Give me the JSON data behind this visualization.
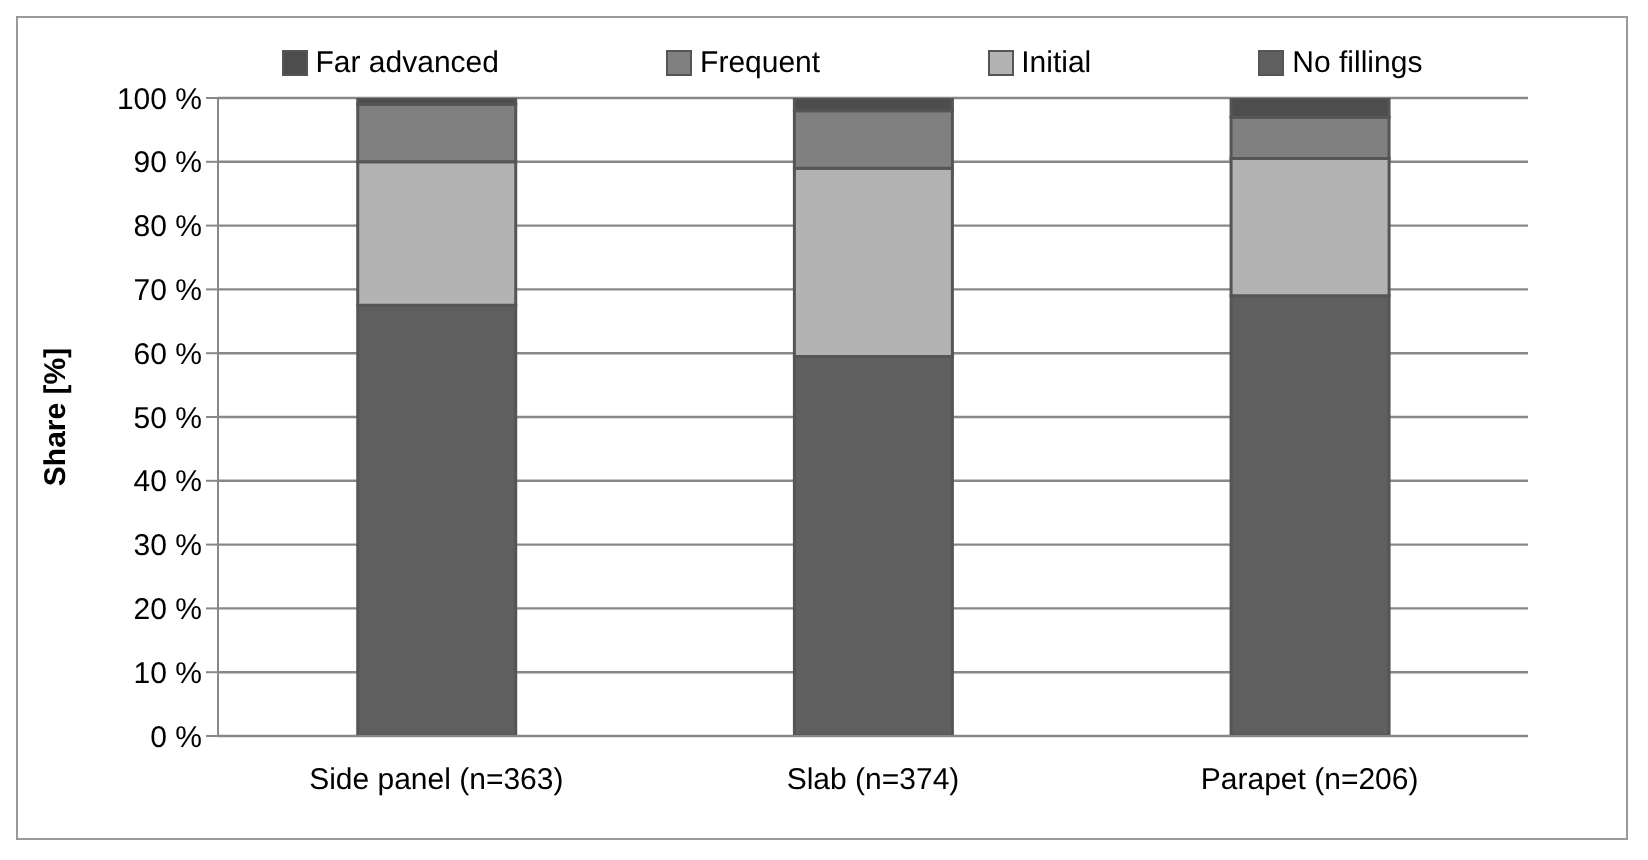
{
  "chart_data": {
    "type": "bar",
    "stacked": true,
    "ylabel": "Share [%]",
    "categories": [
      "Side panel (n=363)",
      "Slab (n=374)",
      "Parapet (n=206)"
    ],
    "series": [
      {
        "name": "No fillings",
        "color": "#5f5f5f",
        "values": [
          67.5,
          59.5,
          69
        ]
      },
      {
        "name": "Initial",
        "color": "#b3b3b3",
        "values": [
          22.5,
          29.5,
          21.5
        ]
      },
      {
        "name": "Frequent",
        "color": "#808080",
        "values": [
          9,
          9,
          6.5
        ]
      },
      {
        "name": "Far advanced",
        "color": "#4d4d4d",
        "values": [
          1,
          2,
          3
        ]
      }
    ],
    "ylim": [
      0,
      100
    ],
    "yticks": [
      {
        "value": 0,
        "label": "0 %"
      },
      {
        "value": 10,
        "label": "10 %"
      },
      {
        "value": 20,
        "label": "20 %"
      },
      {
        "value": 30,
        "label": "30 %"
      },
      {
        "value": 40,
        "label": "40 %"
      },
      {
        "value": 50,
        "label": "50 %"
      },
      {
        "value": 60,
        "label": "60 %"
      },
      {
        "value": 70,
        "label": "70 %"
      },
      {
        "value": 80,
        "label": "80 %"
      },
      {
        "value": 90,
        "label": "90 %"
      },
      {
        "value": 100,
        "label": "100 %"
      }
    ],
    "grid": "y",
    "legend": "top"
  }
}
